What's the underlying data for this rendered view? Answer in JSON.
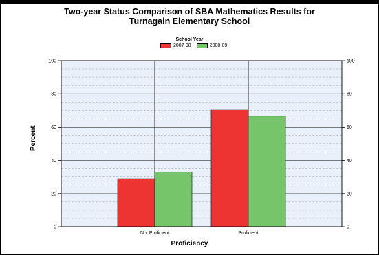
{
  "chart_data": {
    "type": "bar",
    "title_line1": "Two-year Status Comparison of SBA Mathematics Results for",
    "title_line2": "Turnagain Elementary School",
    "legend_title": "School Year",
    "categories": [
      "Not Proficient",
      "Proficient"
    ],
    "series": [
      {
        "name": "2007-08",
        "values": [
          29,
          70.5
        ],
        "color": "#ee3333"
      },
      {
        "name": "2008-09",
        "values": [
          33,
          66.5
        ],
        "color": "#77c56b"
      }
    ],
    "xlabel": "Proficiency",
    "ylabel": "Percent",
    "ylim": [
      0,
      100
    ],
    "yticks": [
      0,
      20,
      40,
      60,
      80,
      100
    ],
    "grid": true,
    "legend_position": "top-center",
    "plot_background": "#eaf0fa"
  }
}
